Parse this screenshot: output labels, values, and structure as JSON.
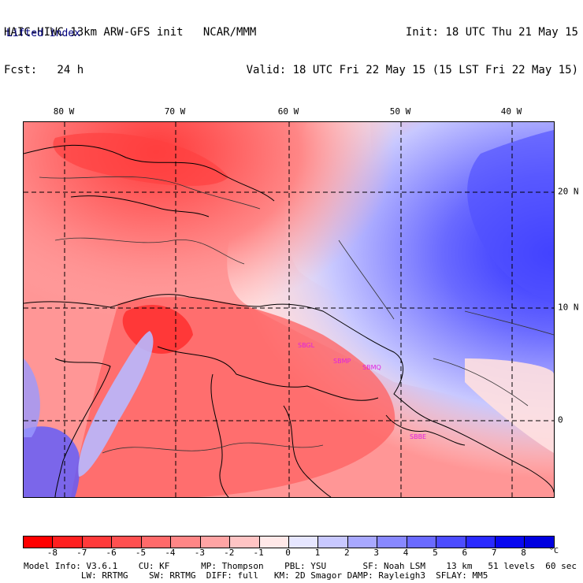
{
  "header": {
    "left_line1": "HAIC-HIWC 13km ARW-GFS init   NCAR/MMM",
    "left_line2": "Fcst:   24 h",
    "right_line1": "Init: 18 UTC Thu 21 May 15",
    "right_line2": "Valid: 18 UTC Fri 22 May 15 (15 LST Fri 22 May 15)",
    "field": "Lifted index"
  },
  "map": {
    "lon_labels": [
      "80 W",
      "70 W",
      "60 W",
      "50 W",
      "40 W"
    ],
    "lat_labels": [
      "20 N",
      "10 N",
      "0"
    ],
    "station_labels": [
      "SBGL",
      "SBMP",
      "SBMQ",
      "SBBE"
    ],
    "colors": {
      "land_contour": "#000000",
      "grid": "#000000",
      "station": "#e020e0"
    }
  },
  "colorbar": {
    "labels": [
      "-8",
      "-7",
      "-6",
      "-5",
      "-4",
      "-3",
      "-2",
      "-1",
      "0",
      "1",
      "2",
      "3",
      "4",
      "5",
      "6",
      "7",
      "8"
    ],
    "unit": "°C",
    "colors": [
      "#ff0000",
      "#ff2020",
      "#ff3a3a",
      "#ff5050",
      "#ff6a6a",
      "#ff8686",
      "#ffa4a4",
      "#ffc4c4",
      "#ffe8e8",
      "#e6e6ff",
      "#c8c8ff",
      "#a8a8ff",
      "#8888ff",
      "#6a6aff",
      "#4c4cff",
      "#2a2aff",
      "#0808f0",
      "#0000e0"
    ]
  },
  "info": {
    "line1": "Model Info: V3.6.1    CU: KF      MP: Thompson    PBL: YSU       SF: Noah LSM    13 km   51 levels  60 sec",
    "line2": "           LW: RRTMG    SW: RRTMG  DIFF: full   KM: 2D Smagor DAMP: Rayleigh3  SFLAY: MM5"
  }
}
